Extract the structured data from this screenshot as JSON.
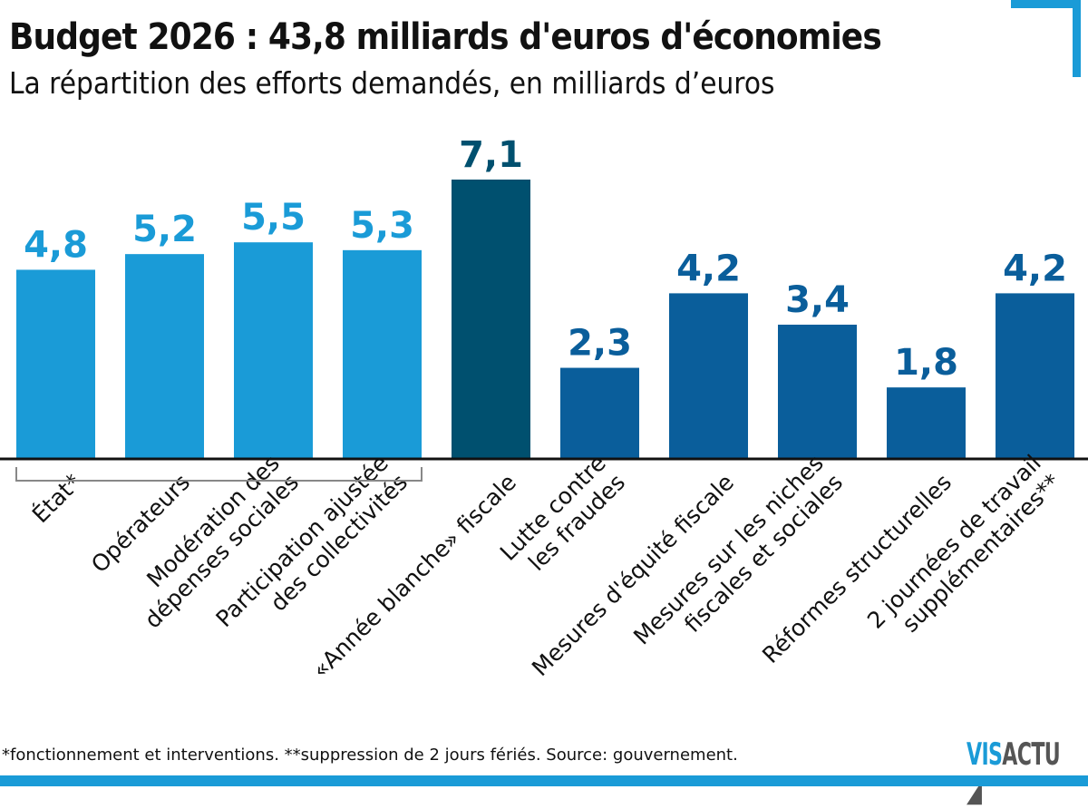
{
  "chart_data": {
    "type": "bar",
    "title": "Budget 2026 : 43,8 milliards d'euros d'économies",
    "subtitle": "La répartition des efforts demandés, en milliards d’euros",
    "categories": [
      [
        "État*"
      ],
      [
        "Opérateurs"
      ],
      [
        "Modération des",
        "dépenses sociales"
      ],
      [
        "Participation ajustée",
        "des collectivités"
      ],
      [
        "«Année blanche» fiscale"
      ],
      [
        "Lutte contre",
        "les fraudes"
      ],
      [
        "Mesures d'équité fiscale"
      ],
      [
        "Mesures sur les niches",
        "fiscales et sociales"
      ],
      [
        "Réformes structurelles"
      ],
      [
        "2 journées de travail",
        "supplémentaires**"
      ]
    ],
    "values": [
      4.8,
      5.2,
      5.5,
      5.3,
      7.1,
      2.3,
      4.2,
      3.4,
      1.8,
      4.2
    ],
    "data_labels": [
      "4,8",
      "5,2",
      "5,5",
      "5,3",
      "7,1",
      "2,3",
      "4,2",
      "3,4",
      "1,8",
      "4,2"
    ],
    "colors": [
      "#1a9bd7",
      "#1a9bd7",
      "#1a9bd7",
      "#1a9bd7",
      "#00506f",
      "#0a5e9b",
      "#0a5e9b",
      "#0a5e9b",
      "#0a5e9b",
      "#0a5e9b"
    ],
    "ylim": [
      0,
      7.1
    ],
    "grid": false
  },
  "footnote": "*fonctionnement et interventions. **suppression de 2 jours fériés. Source: gouvernement.",
  "logo": {
    "part1": "VIS",
    "part2": "ACTU"
  }
}
